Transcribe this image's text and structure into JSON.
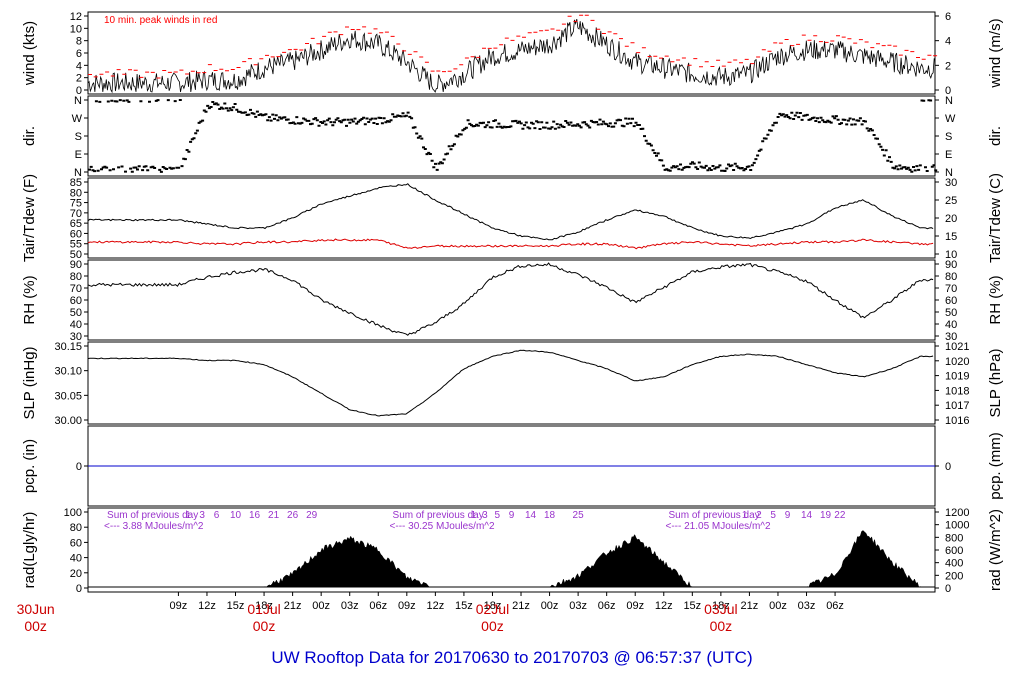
{
  "title": "UW Rooftop Data for 20170630  to  20170703 @ 06:57:37  (UTC)",
  "colors": {
    "title": "#0000cc",
    "day_label": "#cc0000",
    "peak": "#ff0000",
    "dew": "#dd0000",
    "precip": "#0000cc",
    "rad_note": "#9933cc",
    "series": "#000000"
  },
  "x_ticks": [
    "09z",
    "12z",
    "15z",
    "18z",
    "21z",
    "00z",
    "03z",
    "06z",
    "09z",
    "12z",
    "15z",
    "18z",
    "21z",
    "00z",
    "03z",
    "06z",
    "09z",
    "12z",
    "15z",
    "18z",
    "21z",
    "00z",
    "03z",
    "06z"
  ],
  "day_labels": [
    {
      "day": "30Jun",
      "hour": "00z"
    },
    {
      "day": "01Jul",
      "hour": "00z"
    },
    {
      "day": "02Jul",
      "hour": "00z"
    },
    {
      "day": "03Jul",
      "hour": "00z"
    }
  ],
  "chart_data": [
    {
      "type": "line",
      "name": "wind",
      "ylabel": "wind (kts)",
      "ylabel_right": "wind (m/s)",
      "annotation": "10 min. peak winds in red",
      "ylim": [
        0,
        13
      ],
      "yticks": [
        "0",
        "2",
        "4",
        "6",
        "8",
        "10",
        "12"
      ],
      "yticks_right": [
        "0",
        "2",
        "4",
        "6"
      ],
      "hours": [
        0,
        3,
        6,
        9,
        12,
        15,
        18,
        21,
        24,
        27,
        30,
        33,
        36,
        39,
        42,
        45,
        48,
        51,
        54,
        57,
        60,
        63,
        66,
        69,
        72,
        75,
        78
      ],
      "values": [
        1.5,
        2,
        2,
        4,
        5,
        7,
        9,
        8,
        5,
        1,
        3,
        6,
        7,
        8,
        11,
        8,
        5,
        4,
        3,
        2.5,
        3,
        6,
        7,
        7,
        6,
        5,
        4
      ],
      "peak": [
        3,
        4,
        4,
        6,
        7,
        9,
        11,
        10,
        7,
        3,
        5,
        8,
        9,
        10,
        13,
        10,
        7,
        6,
        5,
        4.5,
        5,
        8,
        9,
        9,
        8,
        7,
        6
      ]
    },
    {
      "type": "scatter",
      "name": "dir",
      "ylabel": "dir.",
      "ylabel_right": "dir.",
      "categories": [
        "N",
        "E",
        "S",
        "W",
        "N"
      ],
      "hours": [
        0,
        3,
        6,
        9,
        12,
        15,
        18,
        21,
        24,
        27,
        30,
        33,
        36,
        39,
        42,
        45,
        48,
        51,
        54,
        57,
        60,
        63,
        66,
        69,
        72,
        75,
        78
      ],
      "values": [
        10,
        340,
        320,
        270,
        260,
        250,
        250,
        260,
        280,
        15,
        240,
        240,
        235,
        235,
        240,
        245,
        250,
        20,
        30,
        20,
        25,
        290,
        270,
        260,
        250,
        30,
        15
      ]
    },
    {
      "type": "line",
      "name": "temp",
      "ylabel": "Tair/Tdew (F)",
      "ylabel_right": "Tair/Tdew (C)",
      "ylim": [
        48,
        86
      ],
      "yticks": [
        "50",
        "55",
        "60",
        "65",
        "70",
        "75",
        "80",
        "85"
      ],
      "yticks_right": [
        "10",
        "15",
        "20",
        "25",
        "30"
      ],
      "hours": [
        0,
        3,
        6,
        9,
        12,
        15,
        18,
        21,
        24,
        27,
        30,
        33,
        36,
        39,
        42,
        45,
        48,
        51,
        54,
        57,
        60,
        63,
        66,
        69,
        72,
        75,
        78
      ],
      "tair": [
        66,
        64,
        62,
        62,
        67,
        74,
        78,
        82,
        84,
        76,
        69,
        62,
        58,
        56,
        60,
        66,
        71,
        68,
        62,
        58,
        57,
        60,
        64,
        72,
        76,
        68,
        62
      ],
      "tdew": [
        55,
        54,
        54,
        55,
        55,
        56,
        56,
        56,
        52,
        53,
        53,
        53,
        53,
        53,
        54,
        54,
        52,
        54,
        55,
        54,
        53,
        54,
        55,
        55,
        56,
        55,
        54
      ]
    },
    {
      "type": "line",
      "name": "rh",
      "ylabel": "RH (%)",
      "ylabel_right": "RH (%)",
      "ylim": [
        30,
        90
      ],
      "yticks": [
        "30",
        "40",
        "50",
        "60",
        "70",
        "80",
        "90"
      ],
      "hours": [
        0,
        3,
        6,
        9,
        12,
        15,
        18,
        21,
        24,
        27,
        30,
        33,
        36,
        39,
        42,
        45,
        48,
        51,
        54,
        57,
        60,
        63,
        66,
        69,
        72,
        75,
        78
      ],
      "values": [
        72,
        78,
        82,
        84,
        76,
        60,
        50,
        40,
        32,
        42,
        57,
        78,
        87,
        88,
        80,
        70,
        58,
        70,
        82,
        86,
        88,
        82,
        75,
        60,
        46,
        60,
        76
      ]
    },
    {
      "type": "line",
      "name": "slp",
      "ylabel": "SLP (inHg)",
      "ylabel_right": "SLP (hPa)",
      "ylim": [
        29.99,
        30.18
      ],
      "yticks": [
        "30.00",
        "30.05",
        "30.10",
        "30.15"
      ],
      "yticks_right": [
        "1016",
        "1017",
        "1018",
        "1019",
        "1020",
        "1021"
      ],
      "hours": [
        0,
        3,
        6,
        9,
        12,
        15,
        18,
        21,
        24,
        27,
        30,
        33,
        36,
        39,
        42,
        45,
        48,
        51,
        54,
        57,
        60,
        63,
        66,
        69,
        72,
        75,
        78
      ],
      "values": [
        30.145,
        30.14,
        30.14,
        30.13,
        30.1,
        30.06,
        30.02,
        30.005,
        30.01,
        30.06,
        30.12,
        30.15,
        30.165,
        30.16,
        30.14,
        30.12,
        30.09,
        30.1,
        30.13,
        30.15,
        30.155,
        30.15,
        30.13,
        30.11,
        30.1,
        30.12,
        30.15
      ]
    },
    {
      "type": "line",
      "name": "precip",
      "ylabel": "pcp. (in)",
      "ylabel_right": "pcp. (mm)",
      "yticks": [
        "0"
      ],
      "yticks_right": [
        "0"
      ],
      "values": [
        0,
        0
      ]
    },
    {
      "type": "area",
      "name": "rad",
      "ylabel": "rad(Lgly/hr)",
      "ylabel_right": "rad (W/m^2)",
      "ylim": [
        0,
        100
      ],
      "yticks": [
        "0",
        "20",
        "40",
        "60",
        "80",
        "100"
      ],
      "yticks_right": [
        "0",
        "200",
        "400",
        "600",
        "800",
        "1000",
        "1200"
      ],
      "hours": [
        0,
        3,
        6,
        9,
        12,
        15,
        18,
        21,
        24,
        27,
        30,
        33,
        36,
        39,
        42,
        45,
        48,
        51,
        54,
        57,
        60,
        63,
        66,
        69,
        72,
        75,
        78
      ],
      "values": [
        0,
        0,
        0,
        0,
        20,
        60,
        78,
        60,
        15,
        0,
        0,
        0,
        0,
        0,
        18,
        55,
        80,
        40,
        0,
        0,
        0,
        0,
        0,
        20,
        92,
        40,
        0
      ],
      "notes": [
        {
          "line1": "Sum of previous day",
          "line2": "<--- 3.88 MJoules/m^2",
          "hour": -7.5
        },
        {
          "line1": "Sum of previous day",
          "line2": "<--- 30.25 MJoules/m^2",
          "hour": 22.5
        },
        {
          "line1": "Sum of previous day",
          "line2": "<--- 21.05 MJoules/m^2",
          "hour": 51.5
        }
      ],
      "hour_marks": [
        {
          "label": "1",
          "hour": 1
        },
        {
          "label": "3",
          "hour": 2.5
        },
        {
          "label": "6",
          "hour": 4
        },
        {
          "label": "10",
          "hour": 6
        },
        {
          "label": "16",
          "hour": 8
        },
        {
          "label": "21",
          "hour": 10
        },
        {
          "label": "26",
          "hour": 12
        },
        {
          "label": "29",
          "hour": 14
        },
        {
          "label": "1",
          "hour": 31
        },
        {
          "label": "3",
          "hour": 32.2
        },
        {
          "label": "5",
          "hour": 33.5
        },
        {
          "label": "9",
          "hour": 35
        },
        {
          "label": "14",
          "hour": 37
        },
        {
          "label": "18",
          "hour": 39
        },
        {
          "label": "25",
          "hour": 42
        },
        {
          "label": "1",
          "hour": 59.5
        },
        {
          "label": "2",
          "hour": 61
        },
        {
          "label": "5",
          "hour": 62.5
        },
        {
          "label": "9",
          "hour": 64
        },
        {
          "label": "14",
          "hour": 66
        },
        {
          "label": "19",
          "hour": 68
        },
        {
          "label": "22",
          "hour": 69.5
        }
      ]
    }
  ]
}
